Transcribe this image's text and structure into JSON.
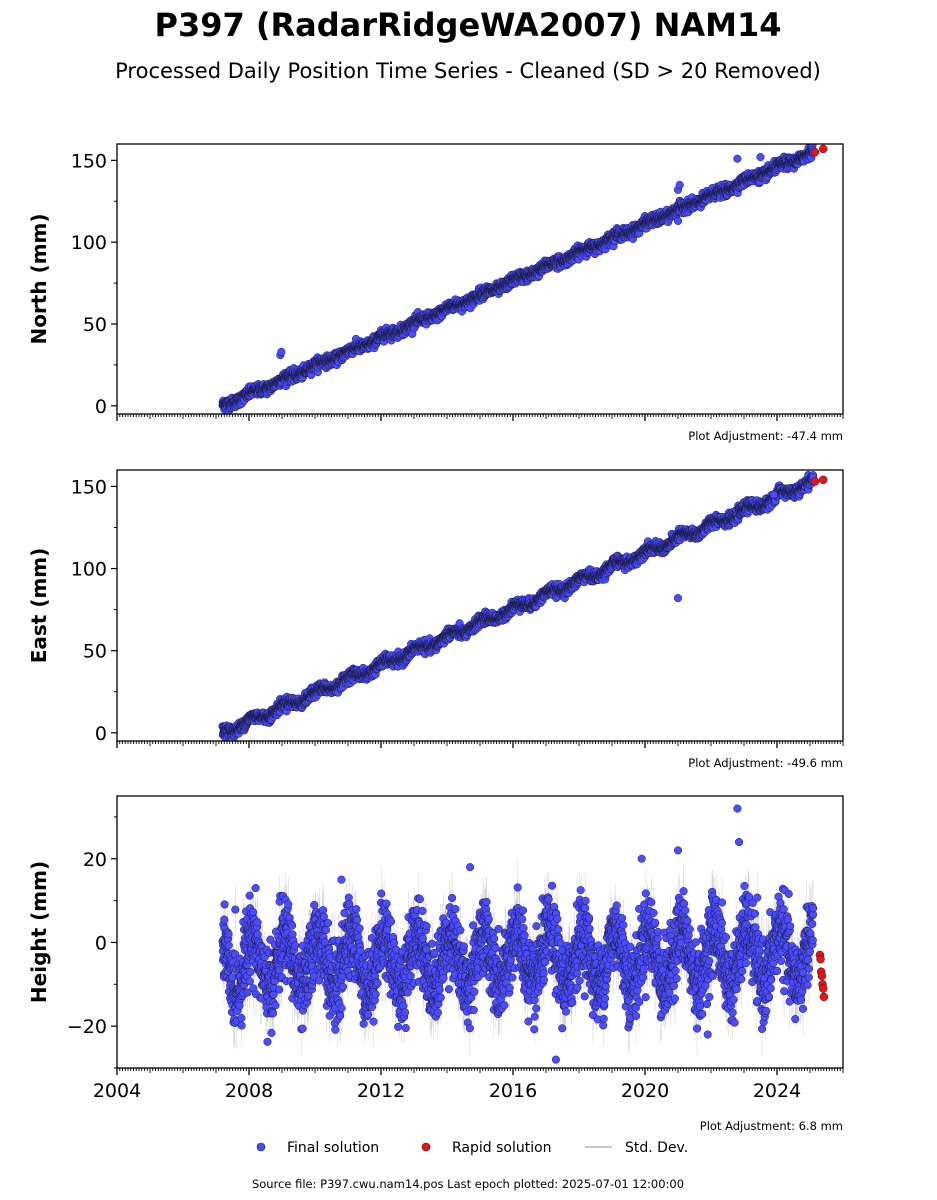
{
  "title": "P397 (RadarRidgeWA2007) NAM14",
  "subtitle": "Processed Daily Position Time Series - Cleaned (SD > 20 Removed)",
  "source_text": "Source file: P397.cwu.nam14.pos  Last epoch plotted: 2025-07-01 12:00:00",
  "legend": {
    "final": "Final solution",
    "rapid": "Rapid solution",
    "std": "Std. Dev."
  },
  "colors": {
    "final_fill": "#4b4bff",
    "final_edge": "#1a1a40",
    "rapid_fill": "#ee1111",
    "std": "#8c8c8c",
    "axis": "#000000"
  },
  "chart_data": [
    {
      "type": "scatter",
      "name": "north",
      "ylabel": "North (mm)",
      "adjustment": "Plot Adjustment: -47.4 mm",
      "xlim": [
        2004.0,
        2026.0
      ],
      "ylim": [
        -5,
        160
      ],
      "yticks": [
        0,
        50,
        100,
        150
      ],
      "start": 2007.2,
      "end": 2025.1,
      "y_start": 0,
      "y_end": 155,
      "noise": 1.6,
      "seasonal": 1.0,
      "rapid": {
        "x": [
          2025.15,
          2025.4
        ],
        "y": [
          155,
          157
        ]
      },
      "outliers": [
        {
          "x": 2008.95,
          "y": 31
        },
        {
          "x": 2008.98,
          "y": 33
        },
        {
          "x": 2021.0,
          "y": 132
        },
        {
          "x": 2021.05,
          "y": 135
        },
        {
          "x": 2022.8,
          "y": 151
        },
        {
          "x": 2023.5,
          "y": 152
        },
        {
          "x": 2021.0,
          "y": 113
        }
      ]
    },
    {
      "type": "scatter",
      "name": "east",
      "ylabel": "East (mm)",
      "adjustment": "Plot Adjustment: -49.6 mm",
      "xlim": [
        2004.0,
        2026.0
      ],
      "ylim": [
        -5,
        160
      ],
      "yticks": [
        0,
        50,
        100,
        150
      ],
      "start": 2007.2,
      "end": 2025.1,
      "y_start": 0,
      "y_end": 153,
      "noise": 1.6,
      "seasonal": 2.0,
      "rapid": {
        "x": [
          2025.15,
          2025.4
        ],
        "y": [
          153,
          154
        ]
      },
      "outliers": [
        {
          "x": 2021.0,
          "y": 82
        },
        {
          "x": 2023.9,
          "y": 145
        }
      ]
    },
    {
      "type": "scatter",
      "name": "height",
      "ylabel": "Height (mm)",
      "adjustment": "Plot Adjustment: 6.8 mm",
      "xlim": [
        2004.0,
        2026.0
      ],
      "ylim": [
        -30,
        35
      ],
      "yticks": [
        -20,
        0,
        20
      ],
      "ytick_labels": [
        "−20",
        "0",
        "20"
      ],
      "xticks": [
        2004,
        2008,
        2012,
        2016,
        2020,
        2024
      ],
      "xtick_labels": [
        "2004",
        "2008",
        "2012",
        "2016",
        "2020",
        "2024"
      ],
      "start": 2007.2,
      "end": 2025.1,
      "y_start": -5,
      "y_end": -3,
      "noise": 4.5,
      "seasonal": 6.5,
      "rapid": {
        "x": [
          2025.3,
          2025.32,
          2025.34,
          2025.36,
          2025.38,
          2025.4,
          2025.42
        ],
        "y": [
          -3,
          -4,
          -7,
          -8,
          -10,
          -11,
          -13
        ]
      },
      "outliers": [
        {
          "x": 2022.8,
          "y": 32
        },
        {
          "x": 2022.85,
          "y": 24
        },
        {
          "x": 2021.0,
          "y": 22
        },
        {
          "x": 2017.3,
          "y": -28
        },
        {
          "x": 2021.9,
          "y": -22
        },
        {
          "x": 2008.2,
          "y": 13
        },
        {
          "x": 2010.8,
          "y": 15
        },
        {
          "x": 2014.7,
          "y": 18
        },
        {
          "x": 2019.9,
          "y": 20
        }
      ]
    }
  ]
}
